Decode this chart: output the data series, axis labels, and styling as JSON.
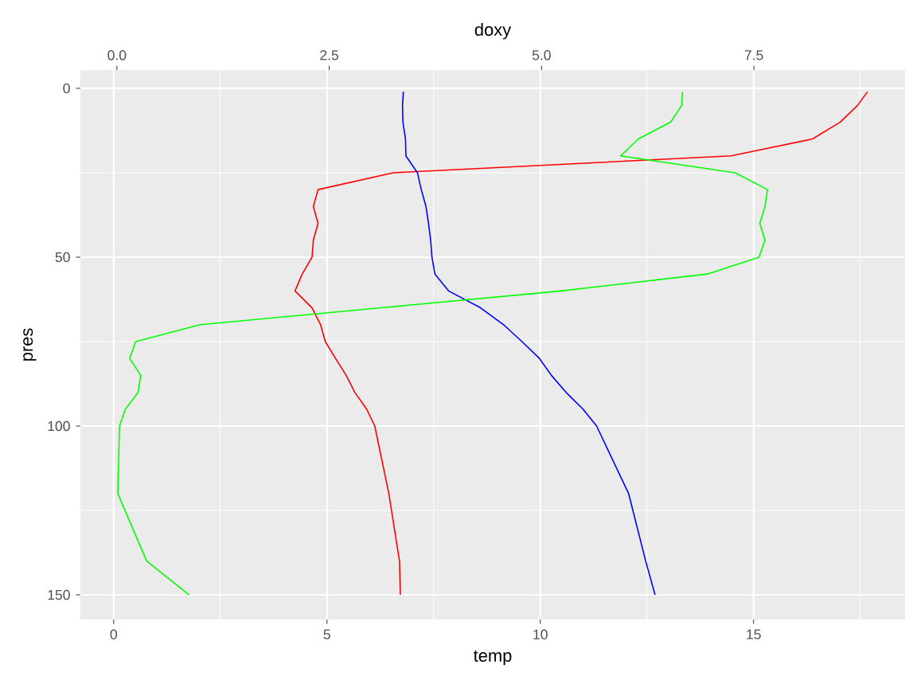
{
  "chart_data": {
    "type": "line",
    "xlabel": "temp",
    "x2label": "doxy",
    "ylabel": "pres",
    "xlim": [
      -0.78,
      18.55
    ],
    "xticks": [
      0,
      5,
      10,
      15
    ],
    "x2lim": [
      -0.43,
      9.28
    ],
    "x2ticks": [
      {
        "value": 0,
        "label": "0.0"
      },
      2.5,
      {
        "value": 5,
        "label": "5.0"
      },
      7.5
    ],
    "ylim": [
      157.3,
      -5.4
    ],
    "yticks": [
      0,
      50,
      100,
      150
    ],
    "grid": true,
    "series": [
      {
        "color": "#ff0000",
        "x": [
          17.67,
          17.44,
          17.03,
          16.38,
          14.47,
          6.55,
          4.79,
          4.68,
          4.79,
          4.68,
          4.65,
          4.42,
          4.25,
          4.65,
          4.85,
          4.96,
          5.2,
          5.45,
          5.65,
          5.93,
          6.12,
          6.45,
          6.7,
          6.72
        ],
        "values": [
          1,
          5,
          10,
          15,
          20,
          25,
          30,
          35,
          40,
          45,
          50,
          55,
          60,
          65,
          70,
          75,
          80,
          85,
          90,
          95,
          100,
          120,
          140,
          150
        ]
      },
      {
        "color": "#0000ff",
        "x": [
          6.79,
          6.77,
          6.78,
          6.84,
          6.85,
          7.12,
          7.21,
          7.32,
          7.38,
          7.43,
          7.46,
          7.53,
          7.85,
          8.6,
          9.14,
          9.57,
          9.98,
          10.26,
          10.6,
          11.0,
          11.32,
          12.07,
          12.47,
          12.69
        ],
        "values": [
          1,
          5,
          10,
          15,
          20,
          25,
          30,
          35,
          40,
          45,
          50,
          55,
          60,
          65,
          70,
          75,
          80,
          85,
          90,
          95,
          100,
          120,
          140,
          150
        ]
      },
      {
        "color": "#00ff00",
        "axis": "x2",
        "x": [
          6.66,
          6.65,
          6.52,
          6.14,
          5.93,
          7.28,
          7.66,
          7.63,
          7.57,
          7.63,
          7.56,
          6.95,
          5.23,
          3.11,
          0.98,
          0.22,
          0.15,
          0.28,
          0.25,
          0.1,
          0.03,
          0.01,
          0.35,
          0.85
        ],
        "values": [
          1,
          5,
          10,
          15,
          20,
          25,
          30,
          35,
          40,
          45,
          50,
          55,
          60,
          65,
          70,
          75,
          80,
          85,
          90,
          95,
          100,
          120,
          140,
          150
        ]
      }
    ]
  }
}
